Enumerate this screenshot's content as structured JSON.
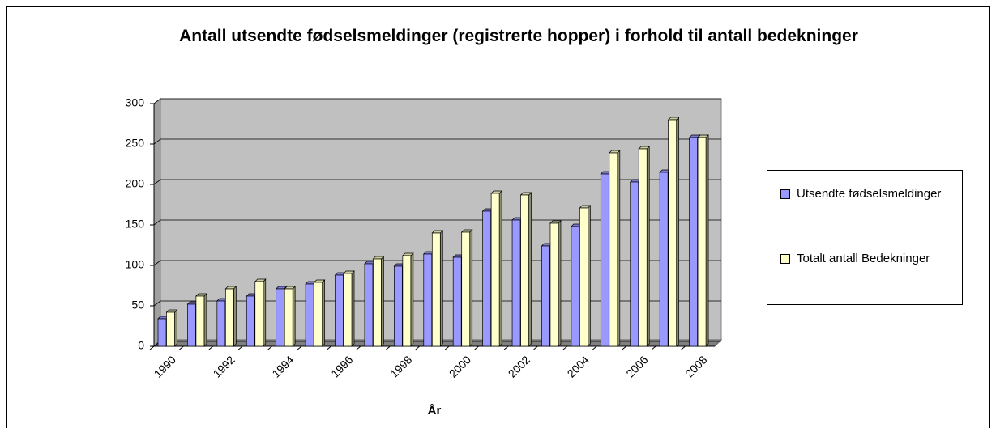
{
  "chart_data": {
    "type": "bar3d",
    "title": "Antall utsendte fødselsmeldinger (registrerte hopper) i forhold til antall bedekninger",
    "x_label": "År",
    "categories": [
      "1990",
      null,
      "1992",
      null,
      "1994",
      null,
      "1996",
      null,
      "1998",
      null,
      "2000",
      null,
      "2002",
      null,
      "2004",
      null,
      "2006",
      null,
      "2008"
    ],
    "series": [
      {
        "name": "Utsendte fødselsmeldinger",
        "color": "#9999ff",
        "values": [
          34,
          52,
          56,
          62,
          71,
          77,
          88,
          102,
          99,
          114,
          110,
          167,
          156,
          124,
          148,
          213,
          203,
          215,
          258
        ]
      },
      {
        "name": "Totalt antall Bedekninger",
        "color": "#ffffcc",
        "values": [
          42,
          62,
          71,
          80,
          71,
          79,
          90,
          108,
          112,
          140,
          141,
          189,
          187,
          152,
          171,
          239,
          244,
          280,
          258
        ]
      }
    ],
    "ylim": [
      0,
      300
    ],
    "yticks": [
      0,
      50,
      100,
      150,
      200,
      250,
      300
    ],
    "grid": true,
    "legend": "right"
  }
}
